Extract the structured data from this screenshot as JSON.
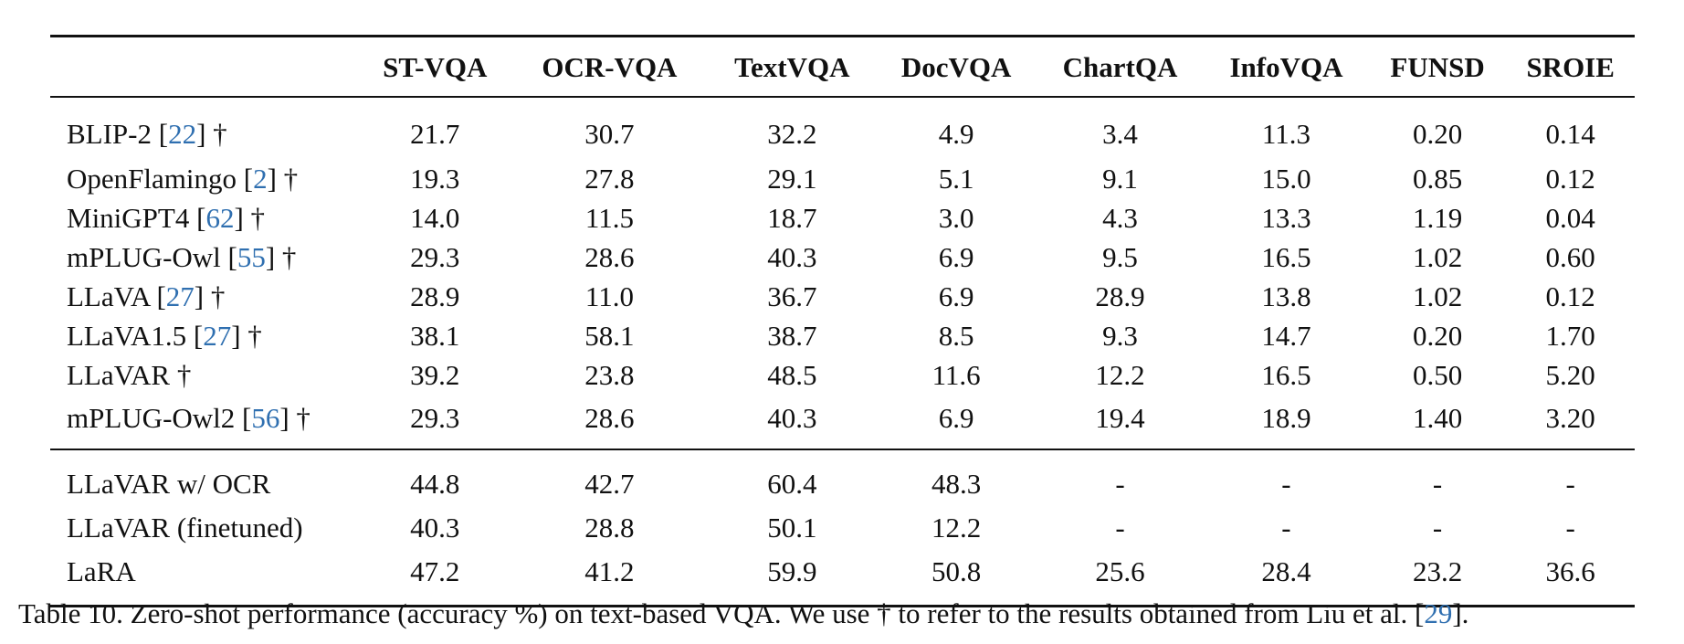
{
  "table": {
    "columns": [
      "ST-VQA",
      "OCR-VQA",
      "TextVQA",
      "DocVQA",
      "ChartQA",
      "InfoVQA",
      "FUNSD",
      "SROIE"
    ],
    "group_a": [
      {
        "name": "BLIP-2 [",
        "cite": "22",
        "suffix": "] †",
        "values": [
          "21.7",
          "30.7",
          "32.2",
          "4.9",
          "3.4",
          "11.3",
          "0.20",
          "0.14"
        ]
      },
      {
        "name": "OpenFlamingo [",
        "cite": "2",
        "suffix": "] †",
        "values": [
          "19.3",
          "27.8",
          "29.1",
          "5.1",
          "9.1",
          "15.0",
          "0.85",
          "0.12"
        ]
      },
      {
        "name": "MiniGPT4 [",
        "cite": "62",
        "suffix": "] †",
        "values": [
          "14.0",
          "11.5",
          "18.7",
          "3.0",
          "4.3",
          "13.3",
          "1.19",
          "0.04"
        ]
      },
      {
        "name": "mPLUG-Owl [",
        "cite": "55",
        "suffix": "] †",
        "values": [
          "29.3",
          "28.6",
          "40.3",
          "6.9",
          "9.5",
          "16.5",
          "1.02",
          "0.60"
        ]
      },
      {
        "name": "LLaVA [",
        "cite": "27",
        "suffix": "] †",
        "values": [
          "28.9",
          "11.0",
          "36.7",
          "6.9",
          "28.9",
          "13.8",
          "1.02",
          "0.12"
        ]
      },
      {
        "name": "LLaVA1.5 [",
        "cite": "27",
        "suffix": "] †",
        "values": [
          "38.1",
          "58.1",
          "38.7",
          "8.5",
          "9.3",
          "14.7",
          "0.20",
          "1.70"
        ]
      },
      {
        "name": "LLaVAR †",
        "cite": "",
        "suffix": "",
        "values": [
          "39.2",
          "23.8",
          "48.5",
          "11.6",
          "12.2",
          "16.5",
          "0.50",
          "5.20"
        ]
      },
      {
        "name": "mPLUG-Owl2 [",
        "cite": "56",
        "suffix": "] †",
        "values": [
          "29.3",
          "28.6",
          "40.3",
          "6.9",
          "19.4",
          "18.9",
          "1.40",
          "3.20"
        ]
      }
    ],
    "group_b": [
      {
        "name": "LLaVAR w/ OCR",
        "cite": "",
        "suffix": "",
        "values": [
          "44.8",
          "42.7",
          "60.4",
          "48.3",
          "-",
          "-",
          "-",
          "-"
        ]
      },
      {
        "name": "LLaVAR (finetuned)",
        "cite": "",
        "suffix": "",
        "values": [
          "40.3",
          "28.8",
          "50.1",
          "12.2",
          "-",
          "-",
          "-",
          "-"
        ]
      },
      {
        "name": "LaRA",
        "cite": "",
        "suffix": "",
        "values": [
          "47.2",
          "41.2",
          "59.9",
          "50.8",
          "25.6",
          "28.4",
          "23.2",
          "36.6"
        ]
      }
    ]
  },
  "caption": {
    "text": "Table 10.  Zero-shot performance (accuracy %) on text-based VQA. We use † to refer to the results obtained from Liu et al. [",
    "cite": "29",
    "end": "]."
  },
  "colors": {
    "citation": "#2f6fb0",
    "text": "#111111"
  }
}
